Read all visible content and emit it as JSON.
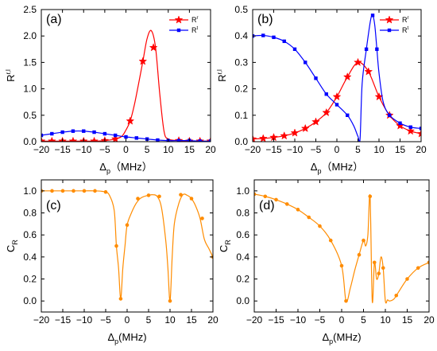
{
  "chart_data": [
    {
      "type": "line",
      "panel_label": "(a)",
      "xlim": [
        -20,
        20
      ],
      "ylim": [
        0,
        2.5
      ],
      "xticks": [
        -20,
        -15,
        -10,
        -5,
        0,
        5,
        10,
        15,
        20
      ],
      "xtick_labels": [
        "−20",
        "−15",
        "−10",
        "−5",
        "0",
        "5",
        "10",
        "15",
        "20"
      ],
      "yticks": [
        0,
        0.5,
        1.0,
        1.5,
        2.0,
        2.5
      ],
      "ytick_labels": [
        "0.0",
        "0.5",
        "1.0",
        "1.5",
        "2.0",
        "2.5"
      ],
      "xlabel": {
        "main": "Δ",
        "sub": "p",
        "rest": "（MHz）"
      },
      "ylabel": {
        "main": "R",
        "sup": "r,l"
      },
      "legend_position": "top-right",
      "series": [
        {
          "name": "R",
          "name_sup": "r",
          "color": "#ff0000",
          "marker": "star",
          "x": [
            -20,
            -17.5,
            -15,
            -12.5,
            -10,
            -7.5,
            -5,
            -2.5,
            -1,
            0,
            1,
            2,
            3,
            4,
            5,
            6,
            7,
            8,
            9,
            10,
            12.5,
            15,
            17.5,
            20
          ],
          "y": [
            0.01,
            0.01,
            0.01,
            0.01,
            0.01,
            0.01,
            0.02,
            0.05,
            0.1,
            0.22,
            0.39,
            0.7,
            1.1,
            1.52,
            1.95,
            2.1,
            1.78,
            0.9,
            0.2,
            0.05,
            0.02,
            0.01,
            0.01,
            0.01
          ],
          "markers_x": [
            -20,
            -17.5,
            -15,
            -12.5,
            -10,
            -7.5,
            -5,
            -2.5,
            1,
            4,
            6.5,
            12.5,
            15,
            17.5,
            20
          ],
          "markers_y": [
            0.01,
            0.01,
            0.01,
            0.01,
            0.01,
            0.01,
            0.02,
            0.05,
            0.39,
            1.52,
            1.78,
            0.02,
            0.01,
            0.01,
            0.01
          ]
        },
        {
          "name": "R",
          "name_sup": "t",
          "color": "#0000ff",
          "marker": "square",
          "x": [
            -20,
            -17.5,
            -15,
            -12.5,
            -10,
            -7.5,
            -5,
            -2.5,
            0,
            2.5,
            5,
            7.5,
            10,
            12.5,
            15,
            17.5,
            20
          ],
          "y": [
            0.12,
            0.15,
            0.18,
            0.2,
            0.2,
            0.18,
            0.15,
            0.12,
            0.09,
            0.07,
            0.05,
            0.03,
            0.02,
            0.02,
            0.02,
            0.01,
            0.01
          ]
        }
      ]
    },
    {
      "type": "line",
      "panel_label": "(b)",
      "xlim": [
        -20,
        20
      ],
      "ylim": [
        0,
        0.5
      ],
      "xticks": [
        -20,
        -15,
        -10,
        -5,
        0,
        5,
        10,
        15,
        20
      ],
      "xtick_labels": [
        "−20",
        "−15",
        "−10",
        "−5",
        "0",
        "5",
        "10",
        "15",
        "20"
      ],
      "yticks": [
        0,
        0.1,
        0.2,
        0.3,
        0.4,
        0.5
      ],
      "ytick_labels": [
        "0.0",
        "0.1",
        "0.2",
        "0.3",
        "0.4",
        "0.5"
      ],
      "xlabel": {
        "main": "Δ",
        "sub": "p",
        "rest": "（MHz）"
      },
      "ylabel": {
        "main": "R",
        "sup": "r,l"
      },
      "legend_position": "top-right",
      "series": [
        {
          "name": "R",
          "name_sup": "r",
          "color": "#ff0000",
          "marker": "star",
          "x": [
            -20,
            -17.5,
            -15,
            -12.5,
            -10,
            -7.5,
            -5,
            -2.5,
            0,
            2.5,
            5,
            7.5,
            10,
            12.5,
            15,
            17.5,
            20
          ],
          "y": [
            0.01,
            0.012,
            0.016,
            0.022,
            0.033,
            0.05,
            0.075,
            0.11,
            0.17,
            0.245,
            0.3,
            0.265,
            0.17,
            0.1,
            0.06,
            0.04,
            0.03
          ]
        },
        {
          "name": "R",
          "name_sup": "t",
          "color": "#0000ff",
          "marker": "square",
          "x": [
            -20,
            -17.5,
            -15,
            -12.5,
            -10,
            -7.5,
            -5,
            -2.5,
            0,
            2.5,
            4,
            5,
            5.5,
            6,
            7,
            8,
            8.5,
            9,
            9.5,
            10,
            11,
            12.5,
            15,
            17.5,
            20
          ],
          "y": [
            0.4,
            0.402,
            0.395,
            0.38,
            0.35,
            0.3,
            0.24,
            0.18,
            0.14,
            0.1,
            0.06,
            0.02,
            0.01,
            0.22,
            0.35,
            0.46,
            0.478,
            0.44,
            0.35,
            0.26,
            0.15,
            0.1,
            0.07,
            0.055,
            0.05
          ],
          "markers_x": [
            -20,
            -17.5,
            -15,
            -12.5,
            -10,
            -7.5,
            -5,
            -2.5,
            0,
            2.5,
            7,
            8.5,
            9.5,
            12.5,
            15,
            17.5,
            20
          ],
          "markers_y": [
            0.4,
            0.402,
            0.395,
            0.38,
            0.35,
            0.3,
            0.24,
            0.18,
            0.14,
            0.1,
            0.35,
            0.478,
            0.35,
            0.1,
            0.07,
            0.055,
            0.05
          ]
        }
      ]
    },
    {
      "type": "line",
      "panel_label": "(c)",
      "xlim": [
        -20,
        20
      ],
      "ylim": [
        -0.1,
        1.1
      ],
      "xticks": [
        -20,
        -15,
        -10,
        -5,
        0,
        5,
        10,
        15,
        20
      ],
      "xtick_labels": [
        "−20",
        "−15",
        "−10",
        "−5",
        "0",
        "5",
        "10",
        "15",
        "20"
      ],
      "yticks": [
        0,
        0.2,
        0.4,
        0.6,
        0.8,
        1.0
      ],
      "ytick_labels": [
        "0.0",
        "0.2",
        "0.4",
        "0.6",
        "0.8",
        "1.0"
      ],
      "xlabel": {
        "main": "Δ",
        "sub": "p",
        "rest": "(MHz)"
      },
      "ylabel": {
        "main": "C",
        "sub": "R"
      },
      "series": [
        {
          "color": "#ff8c00",
          "marker": "circle",
          "x": [
            -20,
            -17.5,
            -15,
            -12.5,
            -10,
            -7.5,
            -5,
            -4,
            -3,
            -2.5,
            -2,
            -1.5,
            -1,
            -0.5,
            0,
            1,
            2,
            3,
            4,
            5,
            6,
            7,
            8,
            9,
            9.5,
            10,
            10.5,
            11,
            12,
            13,
            14,
            15,
            16,
            17,
            18,
            19,
            20
          ],
          "y": [
            1.0,
            1.0,
            1.0,
            1.0,
            1.0,
            1.0,
            0.99,
            0.95,
            0.82,
            0.5,
            0.3,
            0.02,
            0.3,
            0.5,
            0.69,
            0.8,
            0.88,
            0.93,
            0.95,
            0.96,
            0.965,
            0.95,
            0.85,
            0.55,
            0.3,
            0.0,
            0.4,
            0.7,
            0.88,
            0.965,
            0.96,
            0.93,
            0.86,
            0.75,
            0.56,
            0.48,
            0.4
          ],
          "markers_x": [
            -20,
            -17.5,
            -15,
            -12.5,
            -10,
            -7.5,
            -5,
            -2.5,
            -1.5,
            0,
            2.5,
            5,
            7.5,
            10,
            12.5,
            15,
            17.5,
            20
          ],
          "markers_y": [
            1.0,
            1.0,
            1.0,
            1.0,
            1.0,
            1.0,
            0.99,
            0.5,
            0.02,
            0.69,
            0.93,
            0.96,
            0.95,
            0.0,
            0.965,
            0.93,
            0.75,
            0.4
          ]
        }
      ]
    },
    {
      "type": "line",
      "panel_label": "(d)",
      "xlim": [
        -20,
        20
      ],
      "ylim": [
        -0.1,
        1.1
      ],
      "xticks": [
        -20,
        -15,
        -10,
        -5,
        0,
        5,
        10,
        15,
        20
      ],
      "xtick_labels": [
        "−20",
        "−15",
        "−10",
        "−5",
        "0",
        "5",
        "10",
        "15",
        "20"
      ],
      "yticks": [
        0,
        0.2,
        0.4,
        0.6,
        0.8,
        1.0
      ],
      "ytick_labels": [
        "0.0",
        "0.2",
        "0.4",
        "0.6",
        "0.8",
        "1.0"
      ],
      "xlabel": {
        "main": "Δ",
        "sub": "p",
        "rest": "(MHz)"
      },
      "ylabel": {
        "main": "C",
        "sub": "R"
      },
      "series": [
        {
          "color": "#ff8c00",
          "marker": "circle",
          "x": [
            -20,
            -17.5,
            -15,
            -12.5,
            -10,
            -7.5,
            -5,
            -2.5,
            0,
            1,
            2,
            3,
            4,
            5,
            5.5,
            6,
            6.5,
            7,
            7.5,
            8,
            8.5,
            9,
            9.5,
            10,
            10.5,
            11,
            12,
            13,
            15,
            17.5,
            20
          ],
          "y": [
            0.97,
            0.95,
            0.92,
            0.88,
            0.83,
            0.76,
            0.68,
            0.55,
            0.32,
            0.0,
            0.12,
            0.28,
            0.42,
            0.55,
            0.5,
            0.6,
            0.95,
            0.0,
            0.35,
            0.2,
            0.25,
            0.4,
            0.3,
            0.0,
            0.01,
            0.0,
            0.02,
            0.08,
            0.2,
            0.3,
            0.35
          ],
          "markers_x": [
            -20,
            -17.5,
            -15,
            -12.5,
            -10,
            -7.5,
            -5,
            -2.5,
            0,
            1,
            4,
            5,
            6.5,
            7.5,
            8.5,
            9.5,
            12.5,
            15,
            17.5,
            20
          ],
          "markers_y": [
            0.97,
            0.95,
            0.92,
            0.88,
            0.83,
            0.76,
            0.68,
            0.55,
            0.32,
            0.0,
            0.42,
            0.55,
            0.95,
            0.35,
            0.25,
            0.3,
            0.05,
            0.2,
            0.3,
            0.35
          ]
        }
      ]
    }
  ]
}
